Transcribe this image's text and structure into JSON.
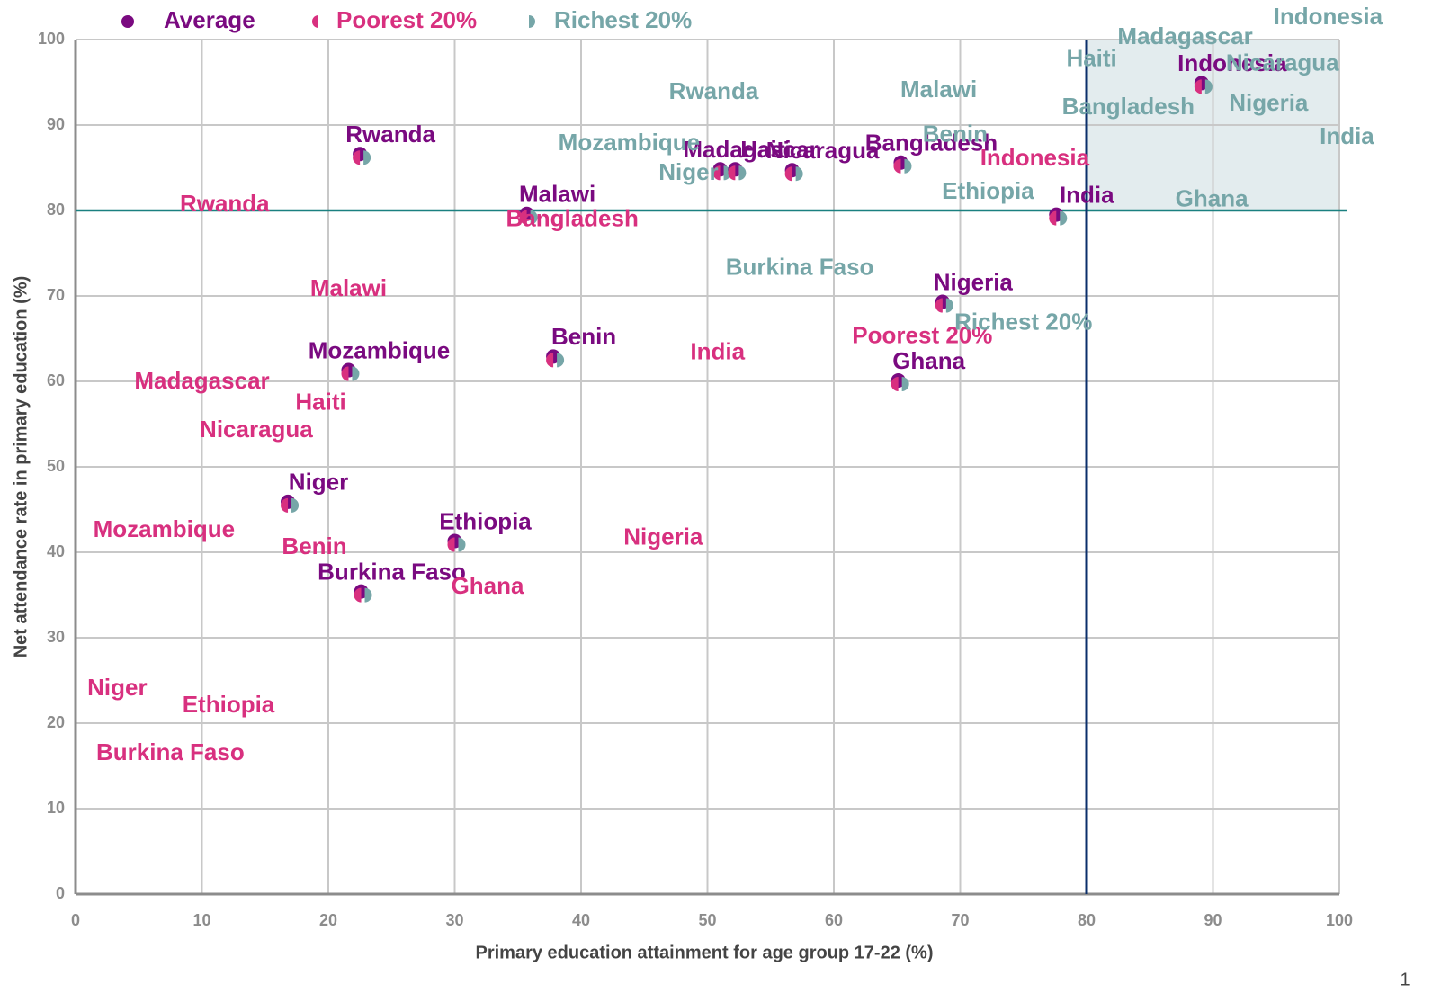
{
  "chart_data": {
    "type": "scatter",
    "xlabel": "Primary education attainment for age group 17-22 (%)",
    "ylabel": "Net attendance rate in primary education (%)",
    "xlim": [
      0,
      100
    ],
    "ylim": [
      0,
      100
    ],
    "xticks": [
      0,
      10,
      20,
      30,
      40,
      50,
      60,
      70,
      80,
      90,
      100
    ],
    "yticks": [
      0,
      10,
      20,
      30,
      40,
      50,
      60,
      70,
      80,
      90,
      100
    ],
    "grid": true,
    "reference_lines": {
      "x": 80,
      "y": 80
    },
    "series": [
      {
        "name": "Average",
        "color": "#7a0a80",
        "labels": [
          "Rwanda",
          "Mozambique",
          "Niger",
          "Burkina Faso",
          "Ethiopia",
          "Benin",
          "Malawi",
          "Madagascar",
          "Haiti",
          "Nicaragua",
          "Bangladesh",
          "India",
          "Nigeria",
          "Ghana",
          "Indonesia"
        ],
        "x": [
          22.5,
          21.6,
          16.8,
          22.6,
          30.0,
          37.8,
          35.7,
          51.0,
          52.2,
          56.7,
          65.3,
          77.6,
          68.6,
          65.1,
          89.1
        ],
        "values": [
          86.4,
          61.1,
          45.7,
          35.2,
          41.1,
          62.7,
          79.4,
          84.6,
          84.6,
          84.5,
          85.4,
          79.3,
          69.1,
          59.9,
          94.7
        ]
      },
      {
        "name": "Poorest 20%",
        "color": "#d8307f",
        "labels": [
          "Rwanda",
          "Malawi",
          "Madagascar",
          "Haiti",
          "Nicaragua",
          "Mozambique",
          "Benin",
          "Ghana",
          "Nigeria",
          "India",
          "Niger",
          "Ethiopia",
          "Burkina Faso",
          "Bangladesh",
          "Indonesia"
        ],
        "x": [
          11.8,
          21.6,
          10.0,
          19.4,
          14.3,
          7.0,
          18.9,
          32.6,
          46.5,
          50.8,
          3.3,
          12.1,
          7.5,
          39.3,
          75.9
        ],
        "values": [
          80.6,
          70.7,
          59.9,
          57.4,
          54.2,
          42.5,
          40.5,
          35.9,
          41.6,
          63.3,
          24.0,
          22.0,
          16.4,
          78.9,
          86.0
        ]
      },
      {
        "name": "Richest 20%",
        "color": "#76a6a8",
        "labels": [
          "Indonesia",
          "Madagascar",
          "Haiti",
          "Nicaragua",
          "Nigeria",
          "Bangladesh",
          "India",
          "Ghana",
          "Rwanda",
          "Malawi",
          "Mozambique",
          "Niger",
          "Benin",
          "Ethiopia",
          "Burkina Faso"
        ],
        "x": [
          99.1,
          87.8,
          80.4,
          95.5,
          94.4,
          83.3,
          100.6,
          89.9,
          50.5,
          68.3,
          43.8,
          48.5,
          69.6,
          72.2,
          57.3
        ],
        "values": [
          102.5,
          100.2,
          97.6,
          97.1,
          92.4,
          92.0,
          88.5,
          81.2,
          93.8,
          94.0,
          87.8,
          84.3,
          88.8,
          82.1,
          73.2
        ]
      }
    ],
    "annotations": [
      {
        "text": "Poorest 20%",
        "x": 67.0,
        "y": 65.2,
        "series": 1
      },
      {
        "text": "Richest 20%",
        "x": 75.0,
        "y": 66.8,
        "series": 2
      }
    ],
    "page_number": "1"
  }
}
